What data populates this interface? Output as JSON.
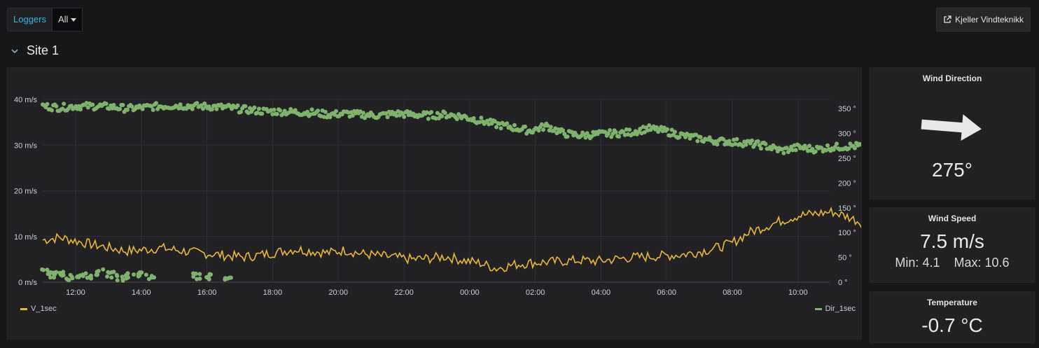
{
  "toolbar": {
    "variable_label": "Loggers",
    "variable_value": "All",
    "link_label": "Kjeller Vindteknikk"
  },
  "row": {
    "title": "Site 1"
  },
  "chart_data": {
    "type": "line",
    "x_ticks": [
      "12:00",
      "14:00",
      "16:00",
      "18:00",
      "20:00",
      "22:00",
      "00:00",
      "02:00",
      "04:00",
      "06:00",
      "08:00",
      "10:00"
    ],
    "y_left": {
      "ticks": [
        "0 m/s",
        "10 m/s",
        "20 m/s",
        "30 m/s",
        "40 m/s"
      ],
      "range": [
        0,
        40
      ],
      "unit": "m/s"
    },
    "y_right": {
      "ticks": [
        "0 °",
        "50 °",
        "100 °",
        "150 °",
        "200 °",
        "250 °",
        "300 °",
        "350 °"
      ],
      "range": [
        0,
        360
      ]
    },
    "grid": true,
    "legend_placement": "bottom",
    "series": [
      {
        "name": "V_1sec",
        "color": "#eab839",
        "axis": "left",
        "style": "line",
        "x_hours": [
          0,
          0.5,
          1,
          1.5,
          2,
          2.5,
          3,
          3.5,
          4,
          4.5,
          5,
          5.5,
          6,
          6.5,
          7,
          7.5,
          8,
          8.5,
          9,
          9.5,
          10,
          10.5,
          11,
          11.5,
          12,
          12.5,
          13,
          13.5,
          14,
          14.5,
          15,
          15.5,
          16,
          16.5,
          17,
          17.5,
          18,
          18.5,
          19,
          19.5,
          20,
          20.5,
          21,
          21.5,
          22,
          22.5,
          23,
          23.5,
          24,
          24.5,
          25,
          25.5,
          26,
          26.5,
          27
        ],
        "values": [
          9.2,
          9.8,
          9.0,
          8.2,
          7.5,
          6.8,
          7.1,
          7.5,
          7.0,
          6.5,
          6.2,
          5.8,
          5.5,
          6.0,
          6.6,
          7.2,
          6.8,
          6.4,
          7.0,
          6.2,
          5.8,
          5.4,
          5.0,
          5.2,
          5.6,
          4.8,
          4.2,
          3.0,
          3.8,
          4.2,
          4.4,
          4.6,
          4.8,
          4.6,
          5.0,
          5.4,
          5.6,
          5.8,
          6.0,
          6.6,
          7.4,
          8.5,
          10.8,
          12.2,
          13.5,
          14.6,
          15.0,
          15.4,
          14.2,
          12.6,
          12.3,
          12.0,
          12.3,
          12.6,
          12.5
        ]
      },
      {
        "name": "Dir_1sec",
        "color": "#7eb26d",
        "axis": "right",
        "style": "points",
        "x_hours": [
          0,
          0.5,
          1,
          1.5,
          2,
          2.5,
          3,
          3.5,
          4,
          4.5,
          5,
          5.5,
          6,
          6.5,
          7,
          7.5,
          8,
          8.5,
          9,
          9.5,
          10,
          10.5,
          11,
          11.5,
          12,
          12.5,
          13,
          13.5,
          14,
          14.5,
          15,
          15.5,
          16,
          16.5,
          17,
          17.5,
          18,
          18.5,
          19,
          19.5,
          20,
          20.5,
          21,
          21.5,
          22,
          22.5,
          23,
          23.5,
          24,
          24.5,
          25,
          25.5,
          26,
          26.5,
          27
        ],
        "values": [
          355,
          352,
          355,
          355,
          354,
          350,
          352,
          355,
          356,
          355,
          354,
          352,
          348,
          345,
          344,
          343,
          342,
          338,
          340,
          338,
          336,
          340,
          338,
          336,
          338,
          334,
          326,
          318,
          312,
          305,
          315,
          300,
          296,
          298,
          300,
          302,
          310,
          305,
          296,
          290,
          285,
          283,
          280,
          275,
          265,
          272,
          268,
          272,
          274,
          275,
          274,
          272,
          272,
          270,
          270
        ],
        "low_points_x_hours": [
          0.1,
          0.3,
          0.5,
          0.8,
          1.1,
          1.4,
          1.7,
          2.0,
          2.3,
          2.6,
          2.9,
          3.2,
          4.6,
          5.0,
          5.5
        ],
        "low_points_values": [
          22,
          14,
          18,
          10,
          16,
          12,
          20,
          15,
          9,
          13,
          17,
          11,
          12,
          11,
          10
        ]
      }
    ]
  },
  "wind_direction": {
    "title": "Wind Direction",
    "value": "275°",
    "degrees": 275
  },
  "wind_speed": {
    "title": "Wind Speed",
    "value": "7.5 m/s",
    "min_label": "Min:",
    "min": "4.1",
    "max_label": "Max:",
    "max": "10.6"
  },
  "temperature": {
    "title": "Temperature",
    "value": "-0.7 °C"
  }
}
